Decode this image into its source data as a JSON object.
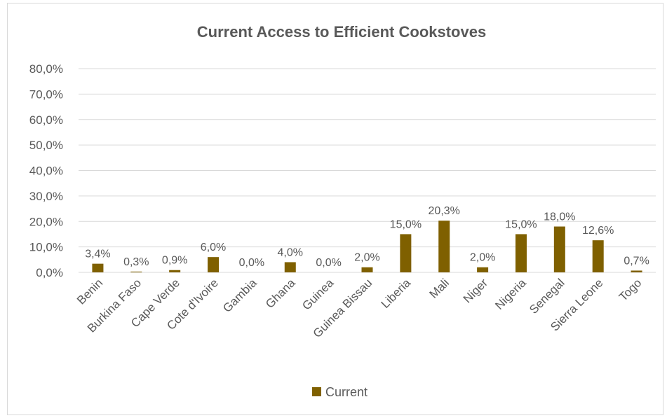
{
  "chart_data": {
    "type": "bar",
    "title": "Current Access to Efficient Cookstoves",
    "categories": [
      "Benin",
      "Burkina Faso",
      "Cape Verde",
      "Cote d'Ivoire",
      "Gambia",
      "Ghana",
      "Guinea",
      "Guinea Bissau",
      "Liberia",
      "Mali",
      "Niger",
      "Nigeria",
      "Senegal",
      "Sierra Leone",
      "Togo"
    ],
    "series": [
      {
        "name": "Current",
        "values": [
          3.4,
          0.3,
          0.9,
          6.0,
          0.0,
          4.0,
          0.0,
          2.0,
          15.0,
          20.3,
          2.0,
          15.0,
          18.0,
          12.6,
          0.7
        ],
        "data_labels": [
          "3,4%",
          "0,3%",
          "0,9%",
          "6,0%",
          "0,0%",
          "4,0%",
          "0,0%",
          "2,0%",
          "15,0%",
          "20,3%",
          "2,0%",
          "15,0%",
          "18,0%",
          "12,6%",
          "0,7%"
        ],
        "color": "#7f6000"
      }
    ],
    "y_ticks": [
      "0,0%",
      "10,0%",
      "20,0%",
      "30,0%",
      "40,0%",
      "50,0%",
      "60,0%",
      "70,0%",
      "80,0%"
    ],
    "ylim": [
      0,
      80
    ],
    "xlabel": "",
    "ylabel": "",
    "grid": true,
    "gridline_color": "#d9d9d9",
    "legend_position": "bottom"
  }
}
